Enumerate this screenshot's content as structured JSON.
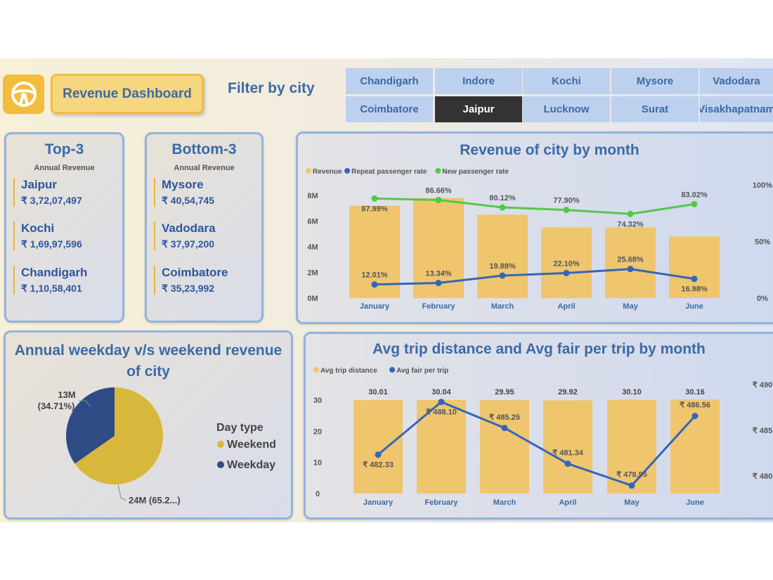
{
  "header": {
    "title": "Revenue Dashboard",
    "filter_label": "Filter by city",
    "logo_icon": "steering-wheel-icon"
  },
  "cities": {
    "row1": [
      "Chandigarh",
      "Indore",
      "Kochi",
      "Mysore",
      "Vadodara"
    ],
    "row2": [
      "Coimbatore",
      "Jaipur",
      "Lucknow",
      "Surat",
      "Visakhapatnam"
    ],
    "selected": "Jaipur"
  },
  "top3": {
    "title": "Top-3",
    "subtitle": "Annual Revenue",
    "items": [
      {
        "city": "Jaipur",
        "value": "₹ 3,72,07,497"
      },
      {
        "city": "Kochi",
        "value": "₹ 1,69,97,596"
      },
      {
        "city": "Chandigarh",
        "value": "₹ 1,10,58,401"
      }
    ]
  },
  "bottom3": {
    "title": "Bottom-3",
    "subtitle": "Annual Revenue",
    "items": [
      {
        "city": "Mysore",
        "value": "₹ 40,54,745"
      },
      {
        "city": "Vadodara",
        "value": "₹ 37,97,200"
      },
      {
        "city": "Coimbatore",
        "value": "₹ 35,23,992"
      }
    ]
  },
  "colors": {
    "bar": "#efc56e",
    "blue": "#3466b8",
    "green": "#52c84a",
    "navy": "#2f4b85",
    "gold": "#d8b83c",
    "title": "#3b6aa6"
  },
  "chart_data": [
    {
      "type": "bar+line",
      "title": "Revenue of city by month",
      "categories": [
        "January",
        "February",
        "March",
        "April",
        "May",
        "June"
      ],
      "legend": [
        "Revenue",
        "Repeat passenger rate",
        "New passenger rate"
      ],
      "y_ticks": [
        "0M",
        "2M",
        "4M",
        "6M",
        "8M"
      ],
      "y2_ticks": [
        "0%",
        "50%",
        "100%"
      ],
      "series": [
        {
          "name": "Revenue",
          "axis": "left",
          "unit": "M",
          "values": [
            7.2,
            7.8,
            6.5,
            5.5,
            5.5,
            4.8
          ]
        },
        {
          "name": "Repeat passenger rate",
          "axis": "right",
          "values": [
            12.01,
            13.34,
            19.88,
            22.1,
            25.68,
            16.98
          ],
          "labels": [
            "12.01%",
            "13.34%",
            "19.88%",
            "22.10%",
            "25.68%",
            "16.98%"
          ]
        },
        {
          "name": "New passenger rate",
          "axis": "right",
          "values": [
            87.99,
            86.66,
            80.12,
            77.9,
            74.32,
            83.02
          ],
          "labels": [
            "87.99%",
            "86.66%",
            "80.12%",
            "77.90%",
            "74.32%",
            "83.02%"
          ]
        }
      ],
      "ylim": [
        0,
        8
      ],
      "y2lim": [
        0,
        100
      ]
    },
    {
      "type": "pie",
      "title": "Annual weekday v/s weekend revenue of city",
      "legend_title": "Day type",
      "slices": [
        {
          "name": "Weekend",
          "value": 65.29,
          "label": "24M (65.2...)"
        },
        {
          "name": "Weekday",
          "value": 34.71,
          "label": "13M\n(34.71%)",
          "label_line1": "13M",
          "label_line2": "(34.71%)"
        }
      ]
    },
    {
      "type": "bar+line",
      "title": "Avg trip distance and Avg fair per trip by month",
      "categories": [
        "January",
        "February",
        "March",
        "April",
        "May",
        "June"
      ],
      "legend": [
        "Avg trip distance",
        "Avg fair per trip"
      ],
      "y_ticks": [
        "0",
        "10",
        "20",
        "30"
      ],
      "y2_ticks": [
        "₹ 480",
        "₹ 485",
        "₹ 490"
      ],
      "series": [
        {
          "name": "Avg trip distance",
          "axis": "left",
          "values": [
            30.01,
            30.04,
            29.95,
            29.92,
            30.1,
            30.16
          ],
          "labels": [
            "30.01",
            "30.04",
            "29.95",
            "29.92",
            "30.10",
            "30.16"
          ]
        },
        {
          "name": "Avg fair per trip",
          "axis": "right",
          "values": [
            482.33,
            488.1,
            485.25,
            481.34,
            478.95,
            486.56
          ],
          "labels": [
            "₹ 482.33",
            "₹ 488.10",
            "₹ 485.25",
            "₹ 481.34",
            "₹ 478.95",
            "₹ 486.56"
          ]
        }
      ],
      "ylim": [
        0,
        30
      ],
      "y2lim": [
        480,
        490
      ]
    }
  ]
}
